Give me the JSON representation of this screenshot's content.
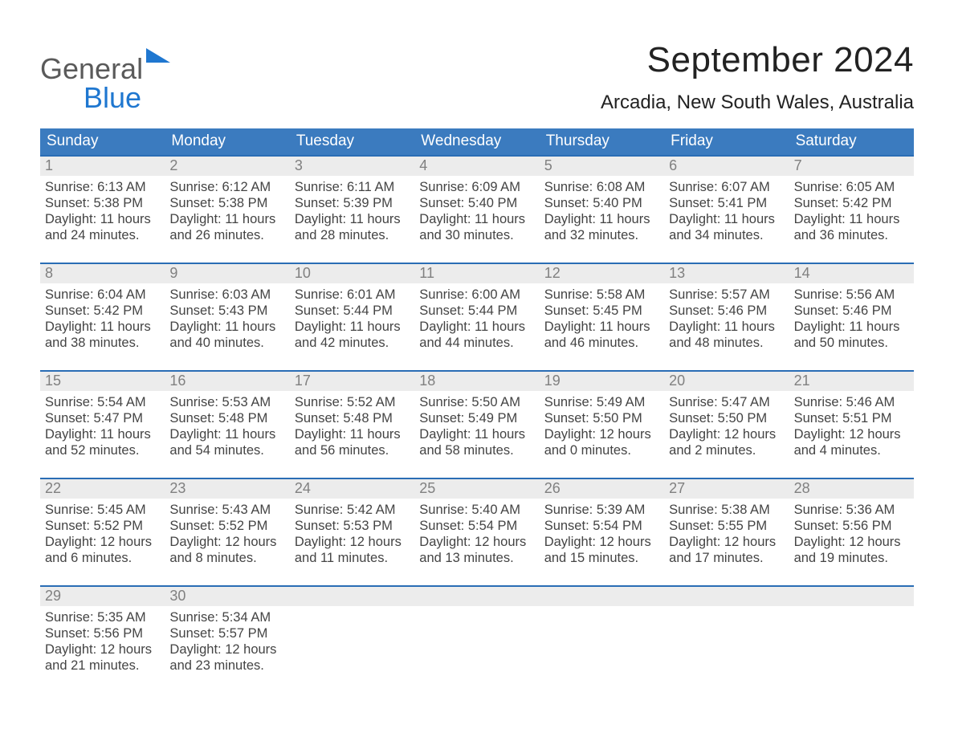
{
  "logo": {
    "word1": "General",
    "word2": "Blue"
  },
  "title": "September 2024",
  "location": "Arcadia, New South Wales, Australia",
  "colors": {
    "header_blue": "#3b7bbf",
    "accent_blue": "#2a6db5",
    "daynum_bg": "#ececec",
    "daynum_gray": "#808080",
    "logo_gray": "#5a5a5a",
    "logo_blue": "#1f77d0",
    "background": "#ffffff",
    "text": "#333333"
  },
  "typography": {
    "title_fontsize": 44,
    "location_fontsize": 24,
    "dow_fontsize": 19,
    "daynum_fontsize": 18,
    "body_fontsize": 16.5,
    "font_family": "Arial"
  },
  "dow": [
    "Sunday",
    "Monday",
    "Tuesday",
    "Wednesday",
    "Thursday",
    "Friday",
    "Saturday"
  ],
  "labels": {
    "sunrise": "Sunrise",
    "sunset": "Sunset",
    "daylight": "Daylight"
  },
  "weeks": [
    [
      {
        "n": "1",
        "sunrise": "6:13 AM",
        "sunset": "5:38 PM",
        "daylight": "11 hours and 24 minutes."
      },
      {
        "n": "2",
        "sunrise": "6:12 AM",
        "sunset": "5:38 PM",
        "daylight": "11 hours and 26 minutes."
      },
      {
        "n": "3",
        "sunrise": "6:11 AM",
        "sunset": "5:39 PM",
        "daylight": "11 hours and 28 minutes."
      },
      {
        "n": "4",
        "sunrise": "6:09 AM",
        "sunset": "5:40 PM",
        "daylight": "11 hours and 30 minutes."
      },
      {
        "n": "5",
        "sunrise": "6:08 AM",
        "sunset": "5:40 PM",
        "daylight": "11 hours and 32 minutes."
      },
      {
        "n": "6",
        "sunrise": "6:07 AM",
        "sunset": "5:41 PM",
        "daylight": "11 hours and 34 minutes."
      },
      {
        "n": "7",
        "sunrise": "6:05 AM",
        "sunset": "5:42 PM",
        "daylight": "11 hours and 36 minutes."
      }
    ],
    [
      {
        "n": "8",
        "sunrise": "6:04 AM",
        "sunset": "5:42 PM",
        "daylight": "11 hours and 38 minutes."
      },
      {
        "n": "9",
        "sunrise": "6:03 AM",
        "sunset": "5:43 PM",
        "daylight": "11 hours and 40 minutes."
      },
      {
        "n": "10",
        "sunrise": "6:01 AM",
        "sunset": "5:44 PM",
        "daylight": "11 hours and 42 minutes."
      },
      {
        "n": "11",
        "sunrise": "6:00 AM",
        "sunset": "5:44 PM",
        "daylight": "11 hours and 44 minutes."
      },
      {
        "n": "12",
        "sunrise": "5:58 AM",
        "sunset": "5:45 PM",
        "daylight": "11 hours and 46 minutes."
      },
      {
        "n": "13",
        "sunrise": "5:57 AM",
        "sunset": "5:46 PM",
        "daylight": "11 hours and 48 minutes."
      },
      {
        "n": "14",
        "sunrise": "5:56 AM",
        "sunset": "5:46 PM",
        "daylight": "11 hours and 50 minutes."
      }
    ],
    [
      {
        "n": "15",
        "sunrise": "5:54 AM",
        "sunset": "5:47 PM",
        "daylight": "11 hours and 52 minutes."
      },
      {
        "n": "16",
        "sunrise": "5:53 AM",
        "sunset": "5:48 PM",
        "daylight": "11 hours and 54 minutes."
      },
      {
        "n": "17",
        "sunrise": "5:52 AM",
        "sunset": "5:48 PM",
        "daylight": "11 hours and 56 minutes."
      },
      {
        "n": "18",
        "sunrise": "5:50 AM",
        "sunset": "5:49 PM",
        "daylight": "11 hours and 58 minutes."
      },
      {
        "n": "19",
        "sunrise": "5:49 AM",
        "sunset": "5:50 PM",
        "daylight": "12 hours and 0 minutes."
      },
      {
        "n": "20",
        "sunrise": "5:47 AM",
        "sunset": "5:50 PM",
        "daylight": "12 hours and 2 minutes."
      },
      {
        "n": "21",
        "sunrise": "5:46 AM",
        "sunset": "5:51 PM",
        "daylight": "12 hours and 4 minutes."
      }
    ],
    [
      {
        "n": "22",
        "sunrise": "5:45 AM",
        "sunset": "5:52 PM",
        "daylight": "12 hours and 6 minutes."
      },
      {
        "n": "23",
        "sunrise": "5:43 AM",
        "sunset": "5:52 PM",
        "daylight": "12 hours and 8 minutes."
      },
      {
        "n": "24",
        "sunrise": "5:42 AM",
        "sunset": "5:53 PM",
        "daylight": "12 hours and 11 minutes."
      },
      {
        "n": "25",
        "sunrise": "5:40 AM",
        "sunset": "5:54 PM",
        "daylight": "12 hours and 13 minutes."
      },
      {
        "n": "26",
        "sunrise": "5:39 AM",
        "sunset": "5:54 PM",
        "daylight": "12 hours and 15 minutes."
      },
      {
        "n": "27",
        "sunrise": "5:38 AM",
        "sunset": "5:55 PM",
        "daylight": "12 hours and 17 minutes."
      },
      {
        "n": "28",
        "sunrise": "5:36 AM",
        "sunset": "5:56 PM",
        "daylight": "12 hours and 19 minutes."
      }
    ],
    [
      {
        "n": "29",
        "sunrise": "5:35 AM",
        "sunset": "5:56 PM",
        "daylight": "12 hours and 21 minutes."
      },
      {
        "n": "30",
        "sunrise": "5:34 AM",
        "sunset": "5:57 PM",
        "daylight": "12 hours and 23 minutes."
      },
      {
        "empty": true
      },
      {
        "empty": true
      },
      {
        "empty": true
      },
      {
        "empty": true
      },
      {
        "empty": true
      }
    ]
  ]
}
